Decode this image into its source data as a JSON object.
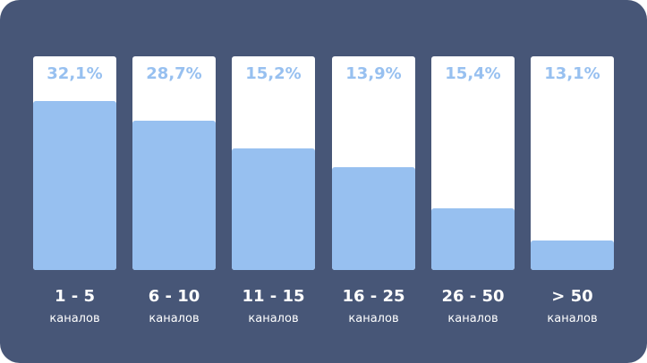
{
  "colors": {
    "background": "#475677",
    "track": "#ffffff",
    "bar": "#97c0f0",
    "label": "#97c0f0"
  },
  "chart_data": {
    "type": "bar",
    "title": "",
    "xlabel": "",
    "ylabel": "",
    "categories": [
      "1 - 5",
      "6 - 10",
      "11 - 15",
      "16 - 25",
      "26 - 50",
      "> 50"
    ],
    "category_units": [
      "каналов",
      "каналов",
      "каналов",
      "каналов",
      "каналов",
      "каналов"
    ],
    "value_labels": [
      "32,1%",
      "28,7%",
      "15,2%",
      "13,9%",
      "15,4%",
      "13,1%"
    ],
    "fill_fraction": [
      0.79,
      0.7,
      0.57,
      0.48,
      0.29,
      0.14
    ],
    "grid": false,
    "legend": "none"
  }
}
